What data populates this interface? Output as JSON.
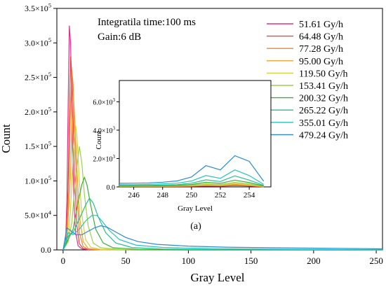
{
  "chart_data": {
    "type": "line",
    "title": "",
    "annotations": [
      "Integratila time:100 ms",
      "Gain:6 dB"
    ],
    "xlabel": "Gray Level",
    "ylabel": "Count",
    "xlim": [
      -5,
      255
    ],
    "ylim": [
      0,
      350000
    ],
    "x_ticks": [
      0,
      50,
      100,
      150,
      200,
      250
    ],
    "x_tick_labels": [
      "0",
      "50",
      "100",
      "150",
      "200",
      "250"
    ],
    "y_ticks": [
      0,
      50000,
      100000,
      150000,
      200000,
      250000,
      300000,
      350000
    ],
    "y_tick_labels": [
      {
        "base": "0.0",
        "sup": ""
      },
      {
        "base": "5.0×10",
        "sup": "4"
      },
      {
        "base": "1.0×10",
        "sup": "5"
      },
      {
        "base": "1.5×10",
        "sup": "5"
      },
      {
        "base": "2.0×10",
        "sup": "5"
      },
      {
        "base": "2.5×10",
        "sup": "5"
      },
      {
        "base": "3.0×10",
        "sup": "5"
      },
      {
        "base": "3.5×10",
        "sup": "5"
      }
    ],
    "legend_position": "top-right",
    "series": [
      {
        "name": "51.61 Gy/h",
        "color": "#e0308c",
        "points": [
          [
            0,
            0
          ],
          [
            2,
            12000
          ],
          [
            3,
            70000
          ],
          [
            4,
            210000
          ],
          [
            5,
            325000
          ],
          [
            6,
            300000
          ],
          [
            7,
            200000
          ],
          [
            8,
            110000
          ],
          [
            9,
            55000
          ],
          [
            10,
            25000
          ],
          [
            12,
            6000
          ],
          [
            15,
            1500
          ],
          [
            20,
            400
          ],
          [
            30,
            100
          ],
          [
            60,
            50
          ],
          [
            255,
            30
          ]
        ]
      },
      {
        "name": "64.48 Gy/h",
        "color": "#e8463e",
        "points": [
          [
            0,
            0
          ],
          [
            2,
            8000
          ],
          [
            4,
            90000
          ],
          [
            5,
            200000
          ],
          [
            6,
            280000
          ],
          [
            7,
            255000
          ],
          [
            8,
            190000
          ],
          [
            9,
            110000
          ],
          [
            11,
            35000
          ],
          [
            13,
            9000
          ],
          [
            16,
            2000
          ],
          [
            25,
            300
          ],
          [
            60,
            50
          ],
          [
            255,
            30
          ]
        ]
      },
      {
        "name": "77.28 Gy/h",
        "color": "#f08436",
        "points": [
          [
            0,
            0
          ],
          [
            3,
            10000
          ],
          [
            5,
            120000
          ],
          [
            6,
            210000
          ],
          [
            7,
            260000
          ],
          [
            8,
            240000
          ],
          [
            9,
            180000
          ],
          [
            11,
            80000
          ],
          [
            13,
            25000
          ],
          [
            16,
            5000
          ],
          [
            20,
            1000
          ],
          [
            30,
            200
          ],
          [
            60,
            50
          ],
          [
            255,
            30
          ]
        ]
      },
      {
        "name": "95.00 Gy/h",
        "color": "#f0a228",
        "points": [
          [
            0,
            0
          ],
          [
            3,
            10000
          ],
          [
            6,
            110000
          ],
          [
            7,
            180000
          ],
          [
            8,
            230000
          ],
          [
            9,
            200000
          ],
          [
            11,
            120000
          ],
          [
            13,
            50000
          ],
          [
            16,
            12000
          ],
          [
            20,
            2000
          ],
          [
            30,
            300
          ],
          [
            60,
            50
          ],
          [
            255,
            30
          ]
        ]
      },
      {
        "name": "119.50 Gy/h",
        "color": "#d4d040",
        "points": [
          [
            0,
            0
          ],
          [
            4,
            12000
          ],
          [
            6,
            60000
          ],
          [
            8,
            140000
          ],
          [
            10,
            180000
          ],
          [
            11,
            165000
          ],
          [
            13,
            100000
          ],
          [
            15,
            50000
          ],
          [
            18,
            15000
          ],
          [
            22,
            4000
          ],
          [
            30,
            800
          ],
          [
            60,
            100
          ],
          [
            255,
            40
          ]
        ]
      },
      {
        "name": "153.41 Gy/h",
        "color": "#9ed04c",
        "points": [
          [
            0,
            0
          ],
          [
            4,
            12000
          ],
          [
            7,
            40000
          ],
          [
            10,
            105000
          ],
          [
            13,
            150000
          ],
          [
            15,
            125000
          ],
          [
            17,
            80000
          ],
          [
            20,
            35000
          ],
          [
            24,
            10000
          ],
          [
            30,
            3000
          ],
          [
            45,
            500
          ],
          [
            80,
            100
          ],
          [
            255,
            40
          ]
        ]
      },
      {
        "name": "200.32 Gy/h",
        "color": "#3ab033",
        "points": [
          [
            0,
            0
          ],
          [
            4,
            15000
          ],
          [
            8,
            30000
          ],
          [
            12,
            70000
          ],
          [
            15,
            95000
          ],
          [
            17,
            105000
          ],
          [
            19,
            95000
          ],
          [
            22,
            65000
          ],
          [
            26,
            30000
          ],
          [
            32,
            10000
          ],
          [
            40,
            3000
          ],
          [
            60,
            800
          ],
          [
            100,
            200
          ],
          [
            255,
            50
          ]
        ]
      },
      {
        "name": "265.22 Gy/h",
        "color": "#26c08a",
        "points": [
          [
            0,
            0
          ],
          [
            4,
            20000
          ],
          [
            8,
            25000
          ],
          [
            13,
            45000
          ],
          [
            18,
            65000
          ],
          [
            21,
            75000
          ],
          [
            24,
            68000
          ],
          [
            28,
            48000
          ],
          [
            34,
            25000
          ],
          [
            42,
            10000
          ],
          [
            55,
            3500
          ],
          [
            80,
            1200
          ],
          [
            130,
            400
          ],
          [
            255,
            100
          ]
        ]
      },
      {
        "name": "355.01 Gy/h",
        "color": "#27c2c2",
        "points": [
          [
            0,
            0
          ],
          [
            4,
            25000
          ],
          [
            8,
            22000
          ],
          [
            13,
            30000
          ],
          [
            18,
            42000
          ],
          [
            23,
            50000
          ],
          [
            27,
            50000
          ],
          [
            31,
            42000
          ],
          [
            37,
            28000
          ],
          [
            45,
            15000
          ],
          [
            58,
            7000
          ],
          [
            80,
            3500
          ],
          [
            120,
            1800
          ],
          [
            180,
            900
          ],
          [
            255,
            300
          ]
        ]
      },
      {
        "name": "479.24 Gy/h",
        "color": "#2a8ad8",
        "points": [
          [
            0,
            0
          ],
          [
            3,
            32000
          ],
          [
            6,
            28000
          ],
          [
            10,
            22000
          ],
          [
            15,
            22000
          ],
          [
            20,
            27000
          ],
          [
            25,
            32000
          ],
          [
            30,
            35000
          ],
          [
            35,
            33000
          ],
          [
            42,
            26000
          ],
          [
            50,
            18000
          ],
          [
            60,
            12000
          ],
          [
            75,
            8000
          ],
          [
            100,
            5500
          ],
          [
            130,
            4000
          ],
          [
            170,
            3000
          ],
          [
            220,
            2200
          ],
          [
            255,
            1500
          ]
        ]
      }
    ],
    "inset": {
      "xlabel": "Gray Level",
      "ylabel": "Count",
      "xlim": [
        245,
        255.5
      ],
      "ylim": [
        0,
        7500
      ],
      "x_ticks": [
        246,
        248,
        250,
        252,
        254
      ],
      "x_tick_labels": [
        "246",
        "248",
        "250",
        "252",
        "254"
      ],
      "y_ticks": [
        0,
        2000,
        4000,
        6000
      ],
      "y_tick_labels": [
        {
          "base": "0.0",
          "sup": ""
        },
        {
          "base": "2.0×10",
          "sup": "3"
        },
        {
          "base": "4.0×10",
          "sup": "3"
        },
        {
          "base": "6.0×10",
          "sup": "3"
        }
      ],
      "caption": "(a)",
      "series": [
        {
          "name": "51.61 Gy/h",
          "x": [
            245,
            246,
            247,
            248,
            249,
            250,
            251,
            252,
            253,
            254,
            255
          ],
          "y": [
            30,
            30,
            30,
            30,
            35,
            40,
            60,
            50,
            90,
            60,
            20
          ]
        },
        {
          "name": "64.48 Gy/h",
          "x": [
            245,
            246,
            247,
            248,
            249,
            250,
            251,
            252,
            253,
            254,
            255
          ],
          "y": [
            30,
            30,
            35,
            35,
            40,
            50,
            80,
            60,
            110,
            70,
            20
          ]
        },
        {
          "name": "77.28 Gy/h",
          "x": [
            245,
            246,
            247,
            248,
            249,
            250,
            251,
            252,
            253,
            254,
            255
          ],
          "y": [
            35,
            35,
            40,
            40,
            45,
            60,
            100,
            80,
            140,
            90,
            20
          ]
        },
        {
          "name": "95.00 Gy/h",
          "x": [
            245,
            246,
            247,
            248,
            249,
            250,
            251,
            252,
            253,
            254,
            255
          ],
          "y": [
            40,
            40,
            45,
            50,
            55,
            70,
            130,
            100,
            180,
            110,
            30
          ]
        },
        {
          "name": "119.50 Gy/h",
          "x": [
            245,
            246,
            247,
            248,
            249,
            250,
            251,
            252,
            253,
            254,
            255
          ],
          "y": [
            45,
            45,
            50,
            55,
            65,
            90,
            170,
            130,
            240,
            150,
            40
          ]
        },
        {
          "name": "153.41 Gy/h",
          "x": [
            245,
            246,
            247,
            248,
            249,
            250,
            251,
            252,
            253,
            254,
            255
          ],
          "y": [
            55,
            55,
            60,
            70,
            80,
            120,
            220,
            170,
            320,
            200,
            50
          ]
        },
        {
          "name": "200.32 Gy/h",
          "x": [
            245,
            246,
            247,
            248,
            249,
            250,
            251,
            252,
            253,
            254,
            255
          ],
          "y": [
            70,
            70,
            80,
            90,
            110,
            170,
            330,
            250,
            480,
            300,
            70
          ]
        },
        {
          "name": "265.22 Gy/h",
          "x": [
            245,
            246,
            247,
            248,
            249,
            250,
            251,
            252,
            253,
            254,
            255
          ],
          "y": [
            100,
            100,
            110,
            130,
            160,
            260,
            500,
            380,
            780,
            480,
            110
          ]
        },
        {
          "name": "355.01 Gy/h",
          "x": [
            245,
            246,
            247,
            248,
            249,
            250,
            251,
            252,
            253,
            254,
            255
          ],
          "y": [
            160,
            160,
            180,
            210,
            260,
            420,
            800,
            600,
            1200,
            800,
            180
          ]
        },
        {
          "name": "479.24 Gy/h",
          "x": [
            245,
            246,
            247,
            248,
            249,
            250,
            251,
            252,
            253,
            254,
            255
          ],
          "y": [
            250,
            260,
            280,
            330,
            420,
            700,
            1500,
            1200,
            2200,
            1800,
            400
          ]
        }
      ]
    }
  }
}
